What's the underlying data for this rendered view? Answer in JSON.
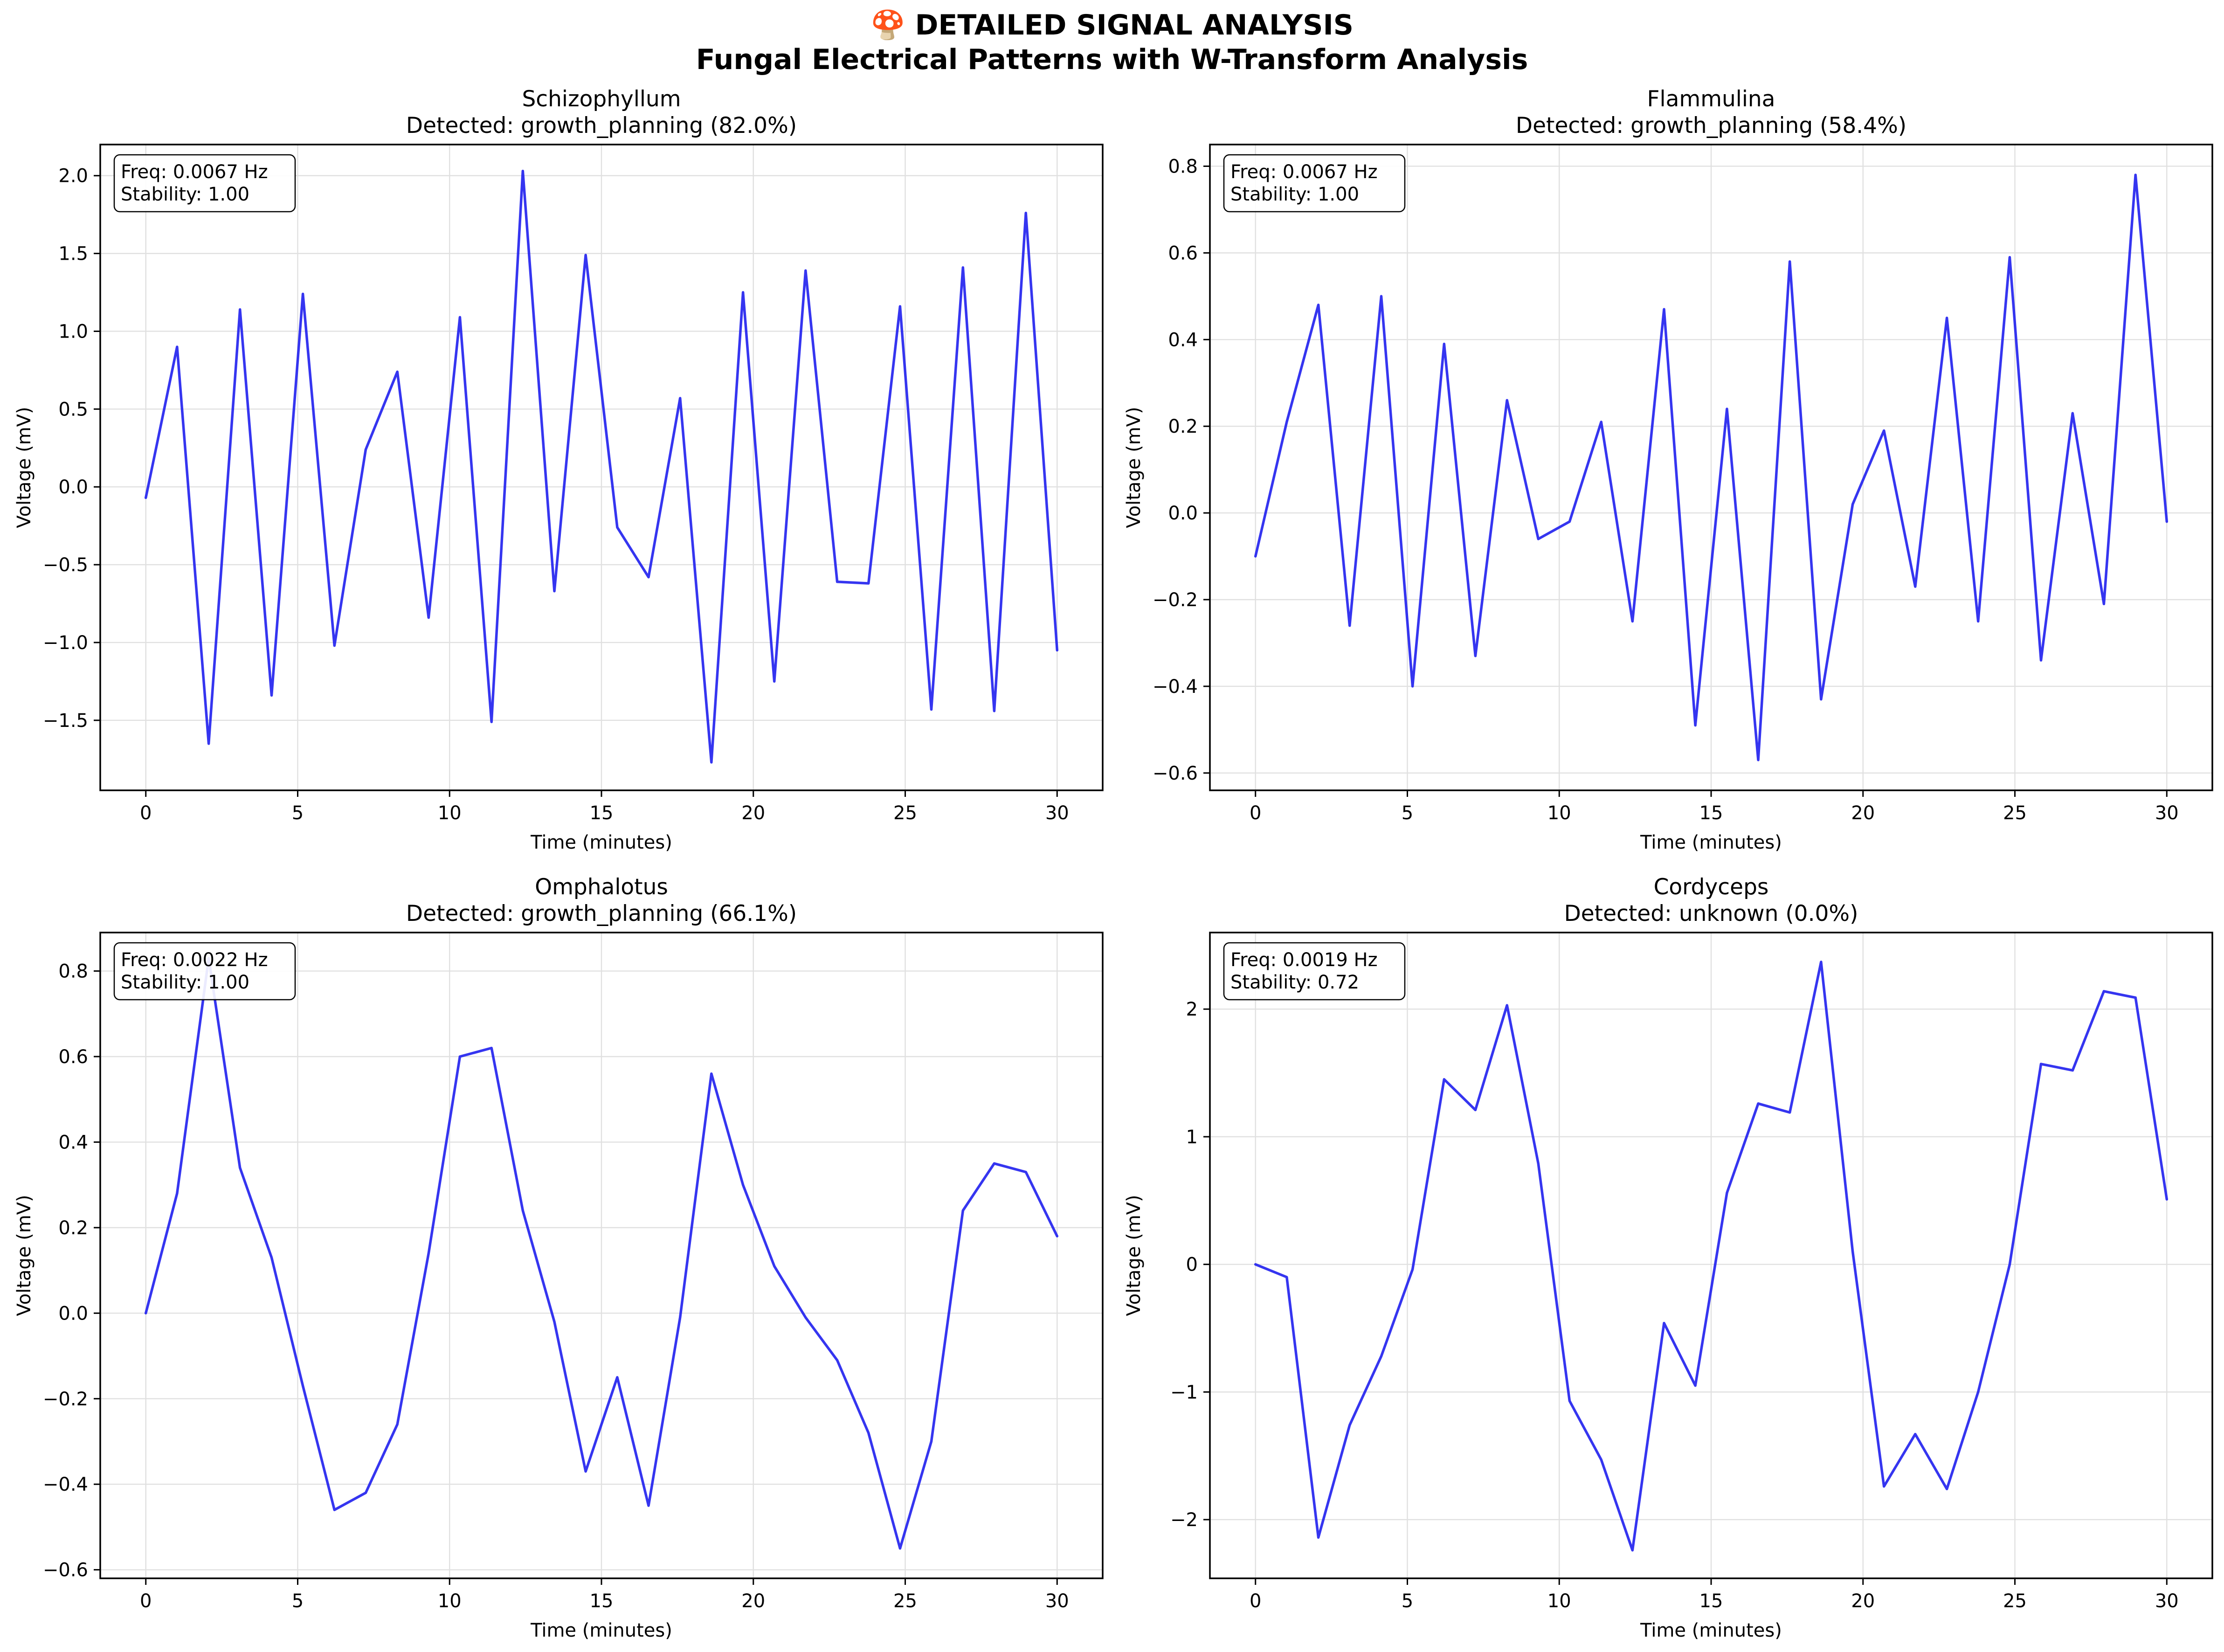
{
  "figure": {
    "title_line1": "🍄 DETAILED SIGNAL ANALYSIS",
    "title_line2": "Fungal Electrical Patterns with W-Transform Analysis"
  },
  "colors": {
    "line": "#1f1fee",
    "grid": "#e0e0e0",
    "frame": "#000000",
    "box_bg": "#ffffff"
  },
  "chart_data": [
    {
      "type": "line",
      "title": "Schizophyllum",
      "subtitle": "Detected: growth_planning (82.0%)",
      "xlabel": "Time (minutes)",
      "ylabel": "Voltage (mV)",
      "annotation": [
        "Freq: 0.0067 Hz",
        "Stability: 1.00"
      ],
      "xlim": [
        -1.5,
        31.5
      ],
      "ylim": [
        -1.95,
        2.2
      ],
      "xticks": [
        0,
        5,
        10,
        15,
        20,
        25,
        30
      ],
      "xtick_labels": [
        "0",
        "5",
        "10",
        "15",
        "20",
        "25",
        "30"
      ],
      "yticks": [
        -1.5,
        -1.0,
        -0.5,
        0.0,
        0.5,
        1.0,
        1.5,
        2.0
      ],
      "ytick_labels": [
        "−1.5",
        "−1.0",
        "−0.5",
        "0.0",
        "0.5",
        "1.0",
        "1.5",
        "2.0"
      ],
      "grid": true,
      "x": [
        0,
        1.03,
        2.07,
        3.1,
        4.14,
        5.17,
        6.21,
        7.24,
        8.28,
        9.31,
        10.34,
        11.38,
        12.41,
        13.45,
        14.48,
        15.52,
        16.55,
        17.59,
        18.62,
        19.66,
        20.69,
        21.72,
        22.76,
        23.79,
        24.83,
        25.86,
        26.9,
        27.93,
        28.97,
        30.0
      ],
      "series": [
        {
          "values": [
            -0.07,
            0.9,
            -1.65,
            1.14,
            -1.34,
            1.24,
            -1.02,
            0.24,
            0.74,
            -0.84,
            1.09,
            -1.51,
            2.03,
            -0.67,
            1.49,
            -0.26,
            -0.58,
            0.57,
            -1.77,
            1.25,
            -1.25,
            1.39,
            -0.61,
            -0.62,
            1.16,
            -1.43,
            1.41,
            -1.44,
            1.76,
            -1.05
          ]
        }
      ]
    },
    {
      "type": "line",
      "title": "Flammulina",
      "subtitle": "Detected: growth_planning (58.4%)",
      "xlabel": "Time (minutes)",
      "ylabel": "Voltage (mV)",
      "annotation": [
        "Freq: 0.0067 Hz",
        "Stability: 1.00"
      ],
      "xlim": [
        -1.5,
        31.5
      ],
      "ylim": [
        -0.64,
        0.85
      ],
      "xticks": [
        0,
        5,
        10,
        15,
        20,
        25,
        30
      ],
      "xtick_labels": [
        "0",
        "5",
        "10",
        "15",
        "20",
        "25",
        "30"
      ],
      "yticks": [
        -0.6,
        -0.4,
        -0.2,
        0.0,
        0.2,
        0.4,
        0.6,
        0.8
      ],
      "ytick_labels": [
        "−0.6",
        "−0.4",
        "−0.2",
        "0.0",
        "0.2",
        "0.4",
        "0.6",
        "0.8"
      ],
      "grid": true,
      "x": [
        0,
        1.03,
        2.07,
        3.1,
        4.14,
        5.17,
        6.21,
        7.24,
        8.28,
        9.31,
        10.34,
        11.38,
        12.41,
        13.45,
        14.48,
        15.52,
        16.55,
        17.59,
        18.62,
        19.66,
        20.69,
        21.72,
        22.76,
        23.79,
        24.83,
        25.86,
        26.9,
        27.93,
        28.97,
        30.0
      ],
      "series": [
        {
          "values": [
            -0.1,
            0.21,
            0.48,
            -0.26,
            0.5,
            -0.4,
            0.39,
            -0.33,
            0.26,
            -0.06,
            -0.02,
            0.21,
            -0.25,
            0.47,
            -0.49,
            0.24,
            -0.57,
            0.58,
            -0.43,
            0.02,
            0.19,
            -0.17,
            0.45,
            -0.25,
            0.59,
            -0.34,
            0.23,
            -0.21,
            0.78,
            -0.02
          ]
        }
      ]
    },
    {
      "type": "line",
      "title": "Omphalotus",
      "subtitle": "Detected: growth_planning (66.1%)",
      "xlabel": "Time (minutes)",
      "ylabel": "Voltage (mV)",
      "annotation": [
        "Freq: 0.0022 Hz",
        "Stability: 1.00"
      ],
      "xlim": [
        -1.5,
        31.5
      ],
      "ylim": [
        -0.62,
        0.89
      ],
      "xticks": [
        0,
        5,
        10,
        15,
        20,
        25,
        30
      ],
      "xtick_labels": [
        "0",
        "5",
        "10",
        "15",
        "20",
        "25",
        "30"
      ],
      "yticks": [
        -0.6,
        -0.4,
        -0.2,
        0.0,
        0.2,
        0.4,
        0.6,
        0.8
      ],
      "ytick_labels": [
        "−0.6",
        "−0.4",
        "−0.2",
        "0.0",
        "0.2",
        "0.4",
        "0.6",
        "0.8"
      ],
      "grid": true,
      "x": [
        0,
        1.03,
        2.07,
        3.1,
        4.14,
        5.17,
        6.21,
        7.24,
        8.28,
        9.31,
        10.34,
        11.38,
        12.41,
        13.45,
        14.48,
        15.52,
        16.55,
        17.59,
        18.62,
        19.66,
        20.69,
        21.72,
        22.76,
        23.79,
        24.83,
        25.86,
        26.9,
        27.93,
        28.97,
        30.0
      ],
      "series": [
        {
          "values": [
            0.0,
            0.28,
            0.83,
            0.34,
            0.13,
            -0.17,
            -0.46,
            -0.42,
            -0.26,
            0.14,
            0.6,
            0.62,
            0.24,
            -0.02,
            -0.37,
            -0.15,
            -0.45,
            -0.01,
            0.56,
            0.3,
            0.11,
            -0.01,
            -0.11,
            -0.28,
            -0.55,
            -0.3,
            0.24,
            0.35,
            0.33,
            0.18
          ]
        }
      ]
    },
    {
      "type": "line",
      "title": "Cordyceps",
      "subtitle": "Detected: unknown (0.0%)",
      "xlabel": "Time (minutes)",
      "ylabel": "Voltage (mV)",
      "annotation": [
        "Freq: 0.0019 Hz",
        "Stability: 0.72"
      ],
      "xlim": [
        -1.5,
        31.5
      ],
      "ylim": [
        -2.46,
        2.6
      ],
      "xticks": [
        0,
        5,
        10,
        15,
        20,
        25,
        30
      ],
      "xtick_labels": [
        "0",
        "5",
        "10",
        "15",
        "20",
        "25",
        "30"
      ],
      "yticks": [
        -2,
        -1,
        0,
        1,
        2
      ],
      "ytick_labels": [
        "−2",
        "−1",
        "0",
        "1",
        "2"
      ],
      "grid": true,
      "x": [
        0,
        1.03,
        2.07,
        3.1,
        4.14,
        5.17,
        6.21,
        7.24,
        8.28,
        9.31,
        10.34,
        11.38,
        12.41,
        13.45,
        14.48,
        15.52,
        16.55,
        17.59,
        18.62,
        19.66,
        20.69,
        21.72,
        22.76,
        23.79,
        24.83,
        25.86,
        26.9,
        27.93,
        28.97,
        30.0
      ],
      "series": [
        {
          "values": [
            0.0,
            -0.1,
            -2.14,
            -1.26,
            -0.72,
            -0.04,
            1.45,
            1.21,
            2.03,
            0.79,
            -1.07,
            -1.53,
            -2.24,
            -0.46,
            -0.95,
            0.56,
            1.26,
            1.19,
            2.37,
            0.1,
            -1.74,
            -1.33,
            -1.76,
            -1.0,
            0.0,
            1.57,
            1.52,
            2.14,
            2.09,
            0.51
          ]
        }
      ]
    }
  ]
}
